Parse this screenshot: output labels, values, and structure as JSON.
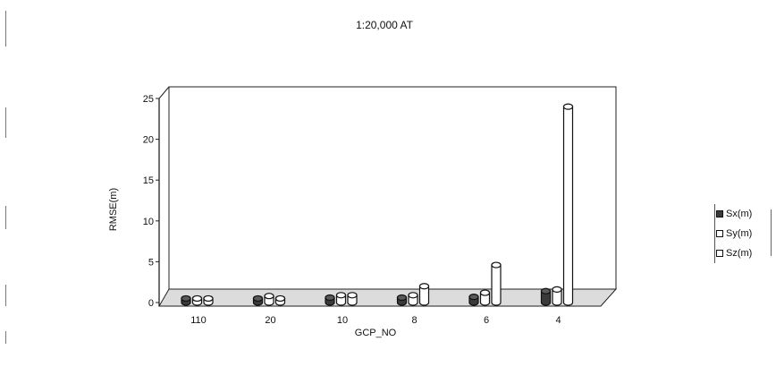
{
  "chart_data": {
    "type": "bar",
    "title": "1:20,000 AT",
    "xlabel": "GCP_NO",
    "ylabel": "RMSE(m)",
    "categories": [
      "110",
      "20",
      "10",
      "8",
      "6",
      "4"
    ],
    "ylim": [
      0,
      25
    ],
    "yticks": [
      "0",
      "5",
      "10",
      "15",
      "20",
      "25"
    ],
    "series": [
      {
        "name": "Sx(m)",
        "values": [
          0.5,
          0.5,
          0.6,
          0.6,
          0.7,
          1.4
        ],
        "color": "#3a3a3a"
      },
      {
        "name": "Sy(m)",
        "values": [
          0.5,
          0.8,
          0.9,
          0.9,
          1.2,
          1.6
        ],
        "color": "#ffffff"
      },
      {
        "name": "Sz(m)",
        "values": [
          0.5,
          0.5,
          0.9,
          2.0,
          4.6,
          24.0
        ],
        "color": "#ffffff"
      }
    ],
    "grid": false,
    "legend_position": "right"
  }
}
